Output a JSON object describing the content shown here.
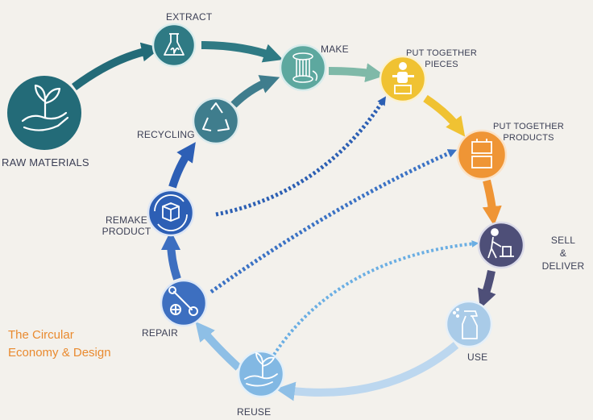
{
  "title_line1": "The Circular",
  "title_line2": "Economy & Design",
  "nodes": {
    "raw_materials": {
      "label": "RAW MATERIALS",
      "color": "#236b78",
      "icon": "hand-sprout-icon"
    },
    "extract": {
      "label": "EXTRACT",
      "color": "#2f7a84",
      "icon": "flask-icon"
    },
    "make": {
      "label": "MAKE",
      "color": "#5da89f",
      "icon": "spool-icon"
    },
    "put_together_pieces": {
      "label_line1": "PUT TOGETHER",
      "label_line2": "PIECES",
      "color": "#f0c232",
      "icon": "worker-icon"
    },
    "put_together_products": {
      "label_line1": "PUT TOGETHER",
      "label_line2": "PRODUCTS",
      "color": "#ef9535",
      "icon": "boxes-icon"
    },
    "sell_deliver": {
      "label_line1": "SELL",
      "label_line2": "&",
      "label_line3": "DELIVER",
      "color": "#4e4f78",
      "icon": "hand-truck-icon"
    },
    "use": {
      "label": "USE",
      "color": "#a9cbe8",
      "icon": "spray-bottle-icon"
    },
    "reuse": {
      "label": "REUSE",
      "color": "#82b8e3",
      "icon": "hand-sprout-icon"
    },
    "repair": {
      "label": "REPAIR",
      "color": "#3d6fc0",
      "icon": "wrench-icon"
    },
    "remake_product": {
      "label_line1": "REMAKE",
      "label_line2": "PRODUCT",
      "color": "#2d5fb5",
      "icon": "box-cycle-icon"
    },
    "recycling": {
      "label": "RECYCLING",
      "color": "#3f7d8d",
      "icon": "recycle-icon"
    }
  }
}
